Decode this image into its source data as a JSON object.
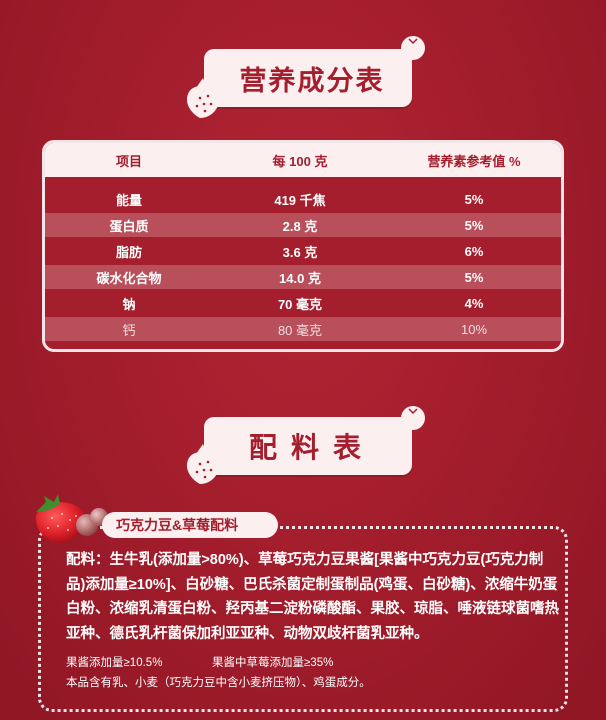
{
  "nutrition": {
    "title": "营养成分表",
    "headers": [
      "项目",
      "每 100 克",
      "营养素参考值 %"
    ],
    "rows": [
      {
        "item": "能量",
        "per100g": "419 千焦",
        "nrv": "5%"
      },
      {
        "item": "蛋白质",
        "per100g": "2.8 克",
        "nrv": "5%"
      },
      {
        "item": "脂肪",
        "per100g": "3.6 克",
        "nrv": "6%"
      },
      {
        "item": "碳水化合物",
        "per100g": "14.0 克",
        "nrv": "5%"
      },
      {
        "item": "钠",
        "per100g": "70 毫克",
        "nrv": "4%"
      },
      {
        "item": "钙",
        "per100g": "80 毫克",
        "nrv": "10%"
      }
    ]
  },
  "ingredients": {
    "title": "配料表",
    "banner": "巧克力豆&草莓配料",
    "text": "配料：生牛乳(添加量>80%)、草莓巧克力豆果酱[果酱中巧克力豆(巧克力制品)添加量≥10%]、白砂糖、巴氏杀菌定制蛋制品(鸡蛋、白砂糖)、浓缩牛奶蛋白粉、浓缩乳清蛋白粉、羟丙基二淀粉磷酸酯、果胶、琼脂、唾液链球菌嗜热亚种、德氏乳杆菌保加利亚亚种、动物双歧杆菌乳亚种。",
    "note_jam": "果酱添加量≥10.5%",
    "note_strawberry": "果酱中草莓添加量≥35%",
    "note_allergen": "本品含有乳、小麦（巧克力豆中含小麦挤压物）、鸡蛋成分。"
  },
  "colors": {
    "background": "#a51e2d",
    "panel": "#fbeff0"
  }
}
